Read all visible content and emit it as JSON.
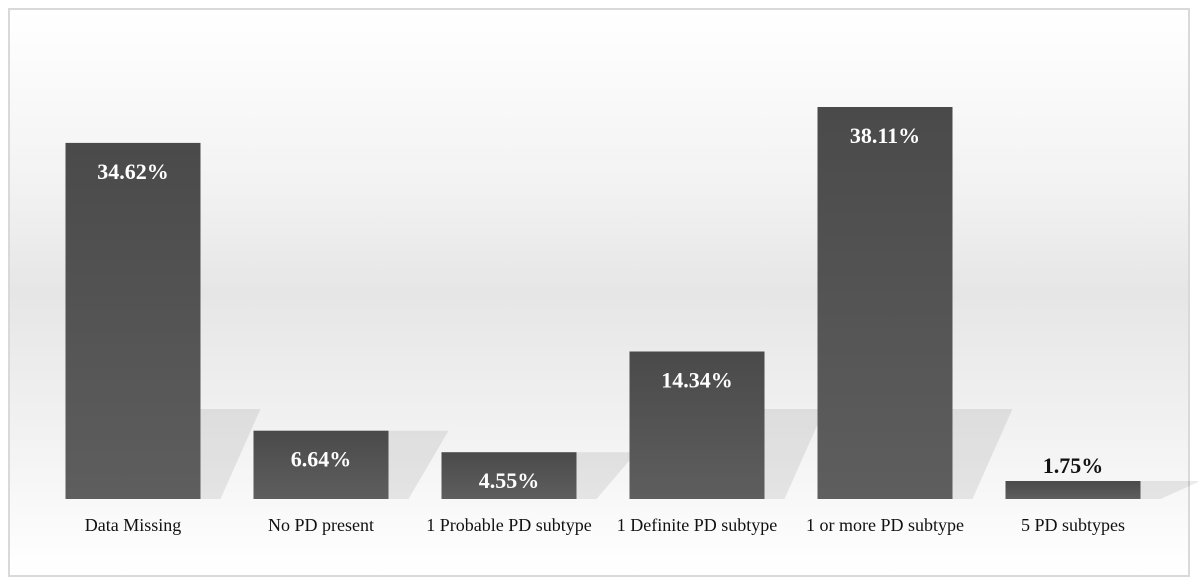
{
  "chart_data": {
    "type": "bar",
    "categories": [
      "Data Missing",
      "No PD present",
      "1 Probable PD subtype",
      "1 Definite PD subtype",
      "1 or more PD subtype",
      "5 PD subtypes"
    ],
    "values": [
      34.62,
      6.64,
      4.55,
      14.34,
      38.11,
      1.75
    ],
    "value_labels": [
      "34.62%",
      "6.64%",
      "4.55%",
      "14.34%",
      "38.11%",
      "1.75%"
    ],
    "color": "#555555"
  }
}
